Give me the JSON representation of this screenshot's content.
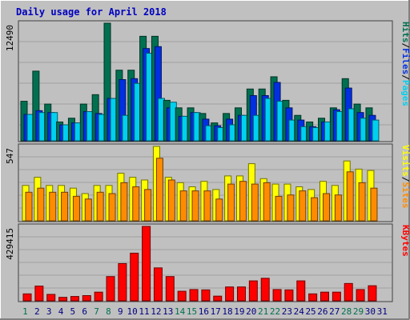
{
  "title": "Daily usage for April 2018",
  "colors": {
    "background": "#c0c0c0",
    "title": "#0000c0",
    "hits": "#007050",
    "files": "#0030e0",
    "pages": "#00d0f0",
    "visits": "#ffff00",
    "sites": "#ff8c00",
    "kbytes": "#ff0000",
    "weekend_label": "#007050",
    "weekday_label": "#000080"
  },
  "chart_data": [
    {
      "type": "bar",
      "panel": "top",
      "scale_label": "12490",
      "ylim": [
        0,
        12490
      ],
      "legend": [
        {
          "key": "pages",
          "text": "Pages"
        },
        {
          "key": "files",
          "text": "Files"
        },
        {
          "key": "hits",
          "text": "Hits"
        }
      ],
      "legend_separator": "/",
      "categories": [
        "1",
        "2",
        "3",
        "4",
        "5",
        "6",
        "7",
        "8",
        "9",
        "10",
        "11",
        "12",
        "13",
        "14",
        "15",
        "16",
        "17",
        "18",
        "19",
        "20",
        "21",
        "22",
        "23",
        "24",
        "25",
        "26",
        "27",
        "28",
        "29",
        "30",
        "31"
      ],
      "series": [
        {
          "name": "Hits",
          "color_key": "hits",
          "values": [
            4200,
            7400,
            3900,
            2000,
            2400,
            3900,
            4900,
            12490,
            7500,
            7500,
            11100,
            11100,
            4300,
            3500,
            3500,
            2900,
            1900,
            2900,
            3500,
            5500,
            5500,
            6800,
            4300,
            2700,
            2000,
            2400,
            3500,
            6600,
            3900,
            3500,
            0
          ]
        },
        {
          "name": "Files",
          "color_key": "files",
          "values": [
            2800,
            3200,
            3000,
            1700,
            1900,
            3100,
            2900,
            4500,
            6500,
            6600,
            9800,
            10000,
            3500,
            2600,
            3000,
            2300,
            1600,
            2300,
            2700,
            4800,
            4800,
            6200,
            3500,
            2200,
            1500,
            2000,
            3300,
            5600,
            3000,
            2700,
            0
          ]
        },
        {
          "name": "Pages",
          "color_key": "pages",
          "values": [
            2800,
            3000,
            3000,
            1700,
            1900,
            3100,
            2800,
            4500,
            2700,
            6100,
            9300,
            4500,
            4100,
            2600,
            3000,
            1600,
            1400,
            1700,
            2700,
            2700,
            4500,
            4200,
            2200,
            1500,
            1400,
            2000,
            3100,
            3400,
            2400,
            2200,
            0
          ]
        }
      ]
    },
    {
      "type": "bar",
      "panel": "middle",
      "scale_label": "547",
      "ylim": [
        0,
        547
      ],
      "legend": [
        {
          "key": "sites",
          "text": "Sites"
        },
        {
          "key": "visits",
          "text": "Visits"
        }
      ],
      "legend_separator": "/",
      "categories": [
        "1",
        "2",
        "3",
        "4",
        "5",
        "6",
        "7",
        "8",
        "9",
        "10",
        "11",
        "12",
        "13",
        "14",
        "15",
        "16",
        "17",
        "18",
        "19",
        "20",
        "21",
        "22",
        "23",
        "24",
        "25",
        "26",
        "27",
        "28",
        "29",
        "30",
        "31"
      ],
      "series": [
        {
          "name": "Visits",
          "color_key": "visits",
          "values": [
            260,
            320,
            260,
            260,
            240,
            200,
            260,
            260,
            350,
            320,
            300,
            547,
            320,
            280,
            250,
            290,
            230,
            330,
            330,
            420,
            310,
            270,
            270,
            250,
            230,
            290,
            260,
            440,
            380,
            370,
            0
          ]
        },
        {
          "name": "Sites",
          "color_key": "sites",
          "values": [
            210,
            240,
            210,
            210,
            180,
            160,
            210,
            200,
            280,
            250,
            230,
            460,
            300,
            220,
            220,
            220,
            160,
            270,
            290,
            270,
            280,
            180,
            190,
            220,
            170,
            200,
            190,
            360,
            280,
            240,
            0
          ]
        }
      ]
    },
    {
      "type": "bar",
      "panel": "bottom",
      "scale_label": "429415",
      "ylim": [
        0,
        429415
      ],
      "legend": [
        {
          "key": "kbytes",
          "text": "KBytes"
        }
      ],
      "categories": [
        "1",
        "2",
        "3",
        "4",
        "5",
        "6",
        "7",
        "8",
        "9",
        "10",
        "11",
        "12",
        "13",
        "14",
        "15",
        "16",
        "17",
        "18",
        "19",
        "20",
        "21",
        "22",
        "23",
        "24",
        "25",
        "26",
        "27",
        "28",
        "29",
        "30",
        "31"
      ],
      "series": [
        {
          "name": "KBytes",
          "color_key": "kbytes",
          "values": [
            40000,
            85000,
            37000,
            20000,
            25000,
            30000,
            50000,
            140000,
            215000,
            275000,
            429415,
            190000,
            140000,
            55000,
            65000,
            63000,
            27000,
            80000,
            80000,
            115000,
            130000,
            65000,
            63000,
            115000,
            40000,
            50000,
            50000,
            100000,
            65000,
            87000,
            0
          ]
        }
      ]
    }
  ],
  "x_labels": [
    {
      "text": "1",
      "weekend": true
    },
    {
      "text": "2",
      "weekend": false
    },
    {
      "text": "3",
      "weekend": false
    },
    {
      "text": "4",
      "weekend": false
    },
    {
      "text": "5",
      "weekend": false
    },
    {
      "text": "6",
      "weekend": false
    },
    {
      "text": "7",
      "weekend": true
    },
    {
      "text": "8",
      "weekend": true
    },
    {
      "text": "9",
      "weekend": false
    },
    {
      "text": "10",
      "weekend": false
    },
    {
      "text": "11",
      "weekend": false
    },
    {
      "text": "12",
      "weekend": false
    },
    {
      "text": "13",
      "weekend": false
    },
    {
      "text": "14",
      "weekend": true
    },
    {
      "text": "15",
      "weekend": true
    },
    {
      "text": "16",
      "weekend": false
    },
    {
      "text": "17",
      "weekend": false
    },
    {
      "text": "18",
      "weekend": false
    },
    {
      "text": "19",
      "weekend": false
    },
    {
      "text": "20",
      "weekend": false
    },
    {
      "text": "21",
      "weekend": true
    },
    {
      "text": "22",
      "weekend": true
    },
    {
      "text": "23",
      "weekend": false
    },
    {
      "text": "24",
      "weekend": false
    },
    {
      "text": "25",
      "weekend": false
    },
    {
      "text": "26",
      "weekend": false
    },
    {
      "text": "27",
      "weekend": false
    },
    {
      "text": "28",
      "weekend": true
    },
    {
      "text": "29",
      "weekend": true
    },
    {
      "text": "30",
      "weekend": false
    },
    {
      "text": "31",
      "weekend": false
    }
  ]
}
